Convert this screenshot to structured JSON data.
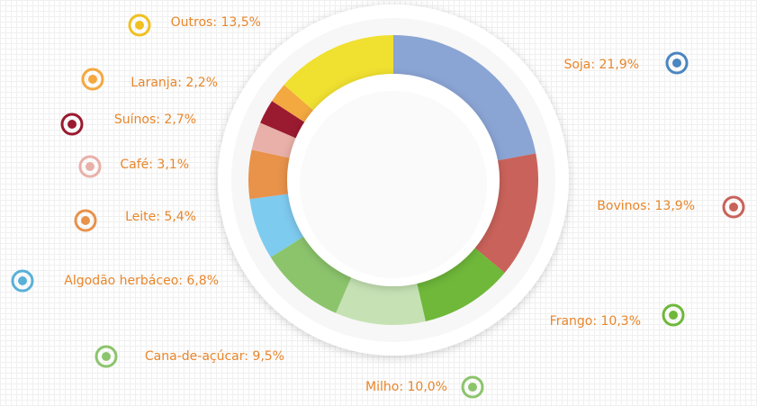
{
  "chart_data": {
    "type": "pie",
    "donut": true,
    "values": [
      21.9,
      13.9,
      10.3,
      10.0,
      9.5,
      6.8,
      5.4,
      3.1,
      2.7,
      2.2,
      13.5
    ],
    "value_labels": [
      "Soja: 21,9%",
      "Bovinos: 13,9%",
      "Frango: 10,3%",
      "Milho: 10,0%",
      "Cana-de-açúcar: 9,5%",
      "Algodão herbáceo: 6,8%",
      "Leite: 5,4%",
      "Café: 3,1%",
      "Suínos: 2,7%",
      "Laranja: 2,2%",
      "Outros: 13,5%"
    ],
    "colors": [
      "#8aa4d4",
      "#c9625a",
      "#6fb83a",
      "#c6e2b4",
      "#8cc46c",
      "#7ecbf0",
      "#e8924a",
      "#e8b0a8",
      "#9a1a30",
      "#f4a840",
      "#f0e030"
    ],
    "icon_colors": [
      "#4a86c0",
      "#c9625a",
      "#6fb83a",
      "#8cc46c",
      "#8cc46c",
      "#5ab0d8",
      "#e8924a",
      "#e8b0a8",
      "#9a1a30",
      "#f4a840",
      "#f0c020"
    ]
  }
}
